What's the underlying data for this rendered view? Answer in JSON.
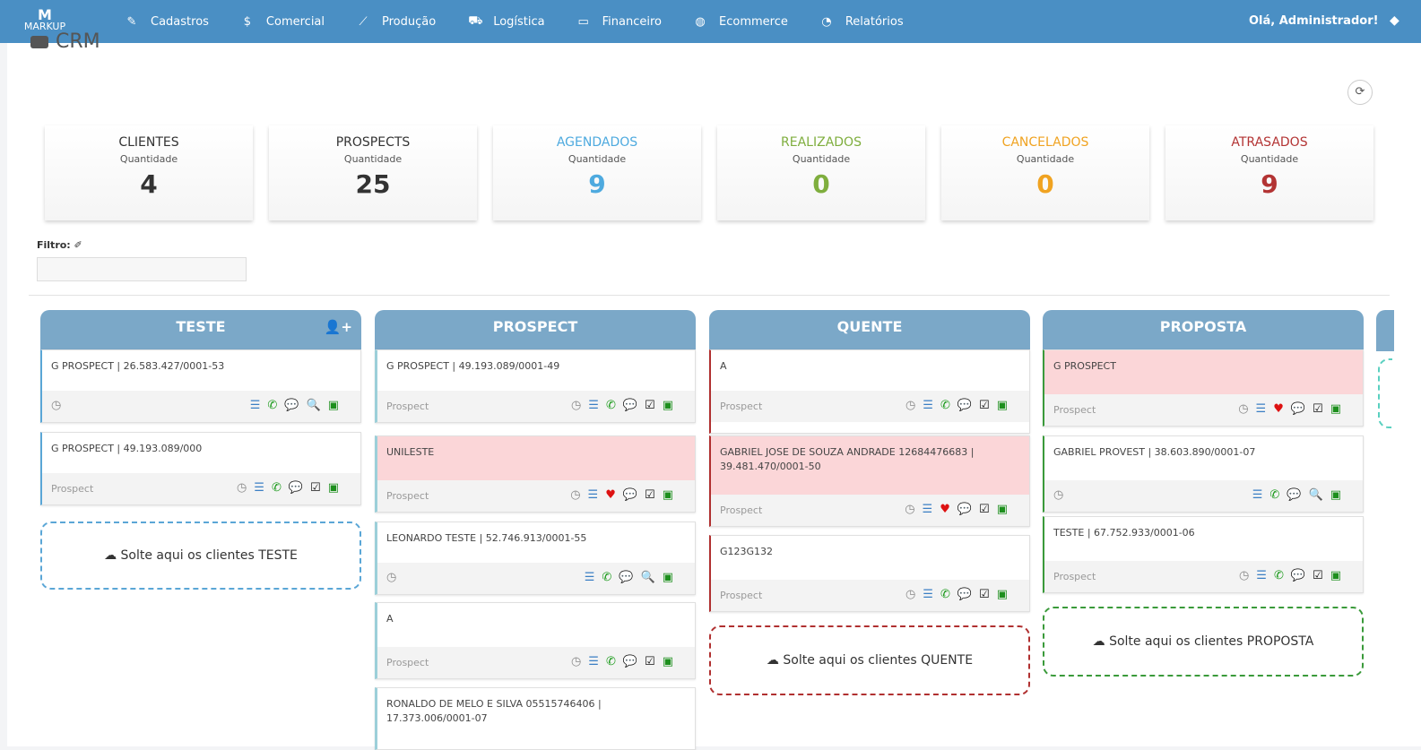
{
  "nav": {
    "logo_top": "M",
    "logo_text": "MARKUP",
    "menu": [
      {
        "label": "Cadastros",
        "icon": "✎"
      },
      {
        "label": "Comercial",
        "icon": "$"
      },
      {
        "label": "Produção",
        "icon": "⟋"
      },
      {
        "label": "Logística",
        "icon": "⛟"
      },
      {
        "label": "Financeiro",
        "icon": "▭"
      },
      {
        "label": "Ecommerce",
        "icon": "◍"
      },
      {
        "label": "Relatórios",
        "icon": "◔"
      }
    ],
    "greeting": "Olá, Administrador!",
    "settings_icon": "◆"
  },
  "page": {
    "title": "CRM",
    "refresh_icon": "⟳"
  },
  "stats": [
    {
      "label": "CLIENTES",
      "sub": "Quantidade",
      "value": "4",
      "color": "#333333"
    },
    {
      "label": "PROSPECTS",
      "sub": "Quantidade",
      "value": "25",
      "color": "#333333"
    },
    {
      "label": "AGENDADOS",
      "sub": "Quantidade",
      "value": "9",
      "color": "#4eaadf"
    },
    {
      "label": "REALIZADOS",
      "sub": "Quantidade",
      "value": "0",
      "color": "#7fae3e"
    },
    {
      "label": "CANCELADOS",
      "sub": "Quantidade",
      "value": "0",
      "color": "#f0a321"
    },
    {
      "label": "ATRASADOS",
      "sub": "Quantidade",
      "value": "9",
      "color": "#b33434"
    }
  ],
  "filter": {
    "label": "Filtro:",
    "icon": "✐",
    "value": ""
  },
  "columns": [
    {
      "title": "TESTE",
      "add_icon": "👤+",
      "cards": [
        {
          "name": "G PROSPECT | 26.583.427/0001-53",
          "tag": ""
        },
        {
          "name": "G PROSPECT | 49.193.089/000",
          "tag": "Prospect"
        }
      ],
      "drop": "Solte aqui os clientes TESTE"
    },
    {
      "title": "PROSPECT",
      "cards": [
        {
          "name": "G PROSPECT | 49.193.089/0001-49",
          "tag": "Prospect"
        },
        {
          "name": "UNILESTE",
          "tag": "Prospect"
        },
        {
          "name": "LEONARDO TESTE | 52.746.913/0001-55",
          "tag": ""
        },
        {
          "name": "A",
          "tag": "Prospect"
        },
        {
          "name": "RONALDO DE MELO E SILVA 05515746406 | 17.373.006/0001-07",
          "tag": ""
        }
      ]
    },
    {
      "title": "QUENTE",
      "cards": [
        {
          "name": "A",
          "tag": "Prospect"
        },
        {
          "name": "GABRIEL JOSE DE SOUZA ANDRADE 12684476683 | 39.481.470/0001-50",
          "tag": "Prospect"
        },
        {
          "name": "G123G132",
          "tag": "Prospect"
        }
      ],
      "drop": "Solte aqui os clientes QUENTE"
    },
    {
      "title": "PROPOSTA",
      "cards": [
        {
          "name": "G PROSPECT",
          "tag": "Prospect"
        },
        {
          "name": "GABRIEL PROVEST | 38.603.890/0001-07",
          "tag": ""
        },
        {
          "name": "TESTE | 67.752.933/0001-06",
          "tag": "Prospect"
        }
      ],
      "drop": "Solte aqui os clientes PROPOSTA"
    }
  ],
  "icons": {
    "clock": "◷",
    "list": "☰",
    "phone": "✆",
    "chat": "💬",
    "check": "☑",
    "money": "▣",
    "search": "🔍",
    "heart": "♥",
    "cloud": "☁"
  },
  "colors": {
    "nav": "#4a8fc4",
    "header": "#7ba8c8",
    "hot_card": "#fbd6d8",
    "teste_border": "#5aa6d6",
    "prospect_border": "#9ccfd9",
    "quente_border": "#b03030",
    "proposta_border": "#3a9a3a"
  }
}
